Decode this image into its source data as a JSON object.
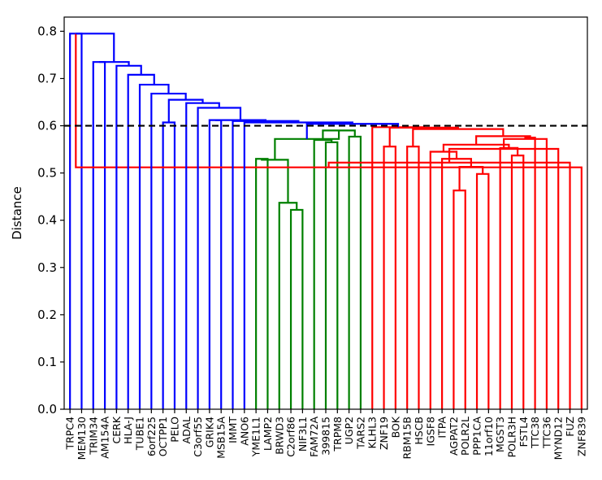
{
  "chart_data": {
    "type": "dendrogram",
    "title": "",
    "xlabel": "",
    "ylabel": "Distance",
    "ylim": [
      0,
      0.83
    ],
    "yticks": [
      0.0,
      0.1,
      0.2,
      0.3,
      0.4,
      0.5,
      0.6,
      0.7,
      0.8
    ],
    "ytick_labels": [
      "0.0",
      "0.1",
      "0.2",
      "0.3",
      "0.4",
      "0.5",
      "0.6",
      "0.7",
      "0.8"
    ],
    "threshold": 0.6,
    "leaves": [
      "TRPC4",
      "MEM130",
      "TRIM34",
      "AM154A",
      "CERK",
      "HLA-J",
      "TUBE1",
      "6orf225",
      "OCTPP1",
      "PELO",
      "ADAL",
      "C3orf55",
      "GRIK4",
      "MSB15A",
      "IMMT",
      "ANO6",
      "YME1L1",
      "LAMP2",
      "BRWD3",
      "C2orf86",
      "NIF3L1",
      "FAM72A",
      "399815",
      "TRPM8",
      "UGP2",
      "TARS2",
      "KLHL3",
      "ZNF19",
      "BOK",
      "RBM15B",
      "HSCB",
      "IGSF8",
      "ITPA",
      "AGPAT2",
      "POLR2L",
      "PPP1CA",
      "11orf10",
      "MGST3",
      "POLR3H",
      "FSTL4",
      "TTC38",
      "TTC36",
      "MYND12",
      "FUZ",
      "ZNF839"
    ],
    "merges": [
      {
        "l": 0,
        "r": 1,
        "h": 0.795,
        "c": "blue"
      },
      {
        "l": 2,
        "r": 3,
        "h": 0.735,
        "c": "blue"
      },
      {
        "l": 8,
        "r": 9,
        "h": 0.607,
        "c": "blue"
      },
      {
        "l": 12,
        "r": 13,
        "h": 0.612,
        "c": "blue"
      },
      {
        "l": 16,
        "r": 17,
        "h": 0.53,
        "c": "green"
      },
      {
        "l": 19,
        "r": 20,
        "h": 0.422,
        "c": "green"
      },
      {
        "l": 18,
        "r": 50,
        "h": 0.437,
        "c": "green"
      },
      {
        "l": 49,
        "r": 51,
        "h": 0.528,
        "c": "green"
      },
      {
        "l": 22,
        "r": 23,
        "h": 0.565,
        "c": "green"
      },
      {
        "l": 21,
        "r": 53,
        "h": 0.57,
        "c": "green"
      },
      {
        "l": 24,
        "r": 25,
        "h": 0.577,
        "c": "green"
      },
      {
        "l": 54,
        "r": 55,
        "h": 0.59,
        "c": "green"
      },
      {
        "l": 52,
        "r": 56,
        "h": 0.572,
        "c": "green"
      },
      {
        "l": 27,
        "r": 28,
        "h": 0.556,
        "c": "red"
      },
      {
        "l": 29,
        "r": 30,
        "h": 0.556,
        "c": "red"
      },
      {
        "l": 33,
        "r": 34,
        "h": 0.463,
        "c": "red"
      },
      {
        "l": 35,
        "r": 36,
        "h": 0.498,
        "c": "red"
      },
      {
        "l": 60,
        "r": 61,
        "h": 0.513,
        "c": "red"
      },
      {
        "l": 32,
        "r": 62,
        "h": 0.53,
        "c": "red"
      },
      {
        "l": 31,
        "r": 63,
        "h": 0.545,
        "c": "red"
      },
      {
        "l": 38,
        "r": 39,
        "h": 0.537,
        "c": "red"
      },
      {
        "l": 37,
        "r": 65,
        "h": 0.553,
        "c": "red"
      },
      {
        "l": 64,
        "r": 66,
        "h": 0.56,
        "c": "red"
      },
      {
        "l": 44,
        "r": 45,
        "h": 0.512,
        "c": "red"
      },
      {
        "l": 43,
        "r": 68,
        "h": 0.522,
        "c": "red"
      },
      {
        "l": 42,
        "r": 69,
        "h": 0.551,
        "c": "red"
      },
      {
        "l": 41,
        "r": 70,
        "h": 0.572,
        "c": "red"
      },
      {
        "l": 40,
        "r": 71,
        "h": 0.575,
        "c": "red"
      },
      {
        "l": 67,
        "r": 72,
        "h": 0.578,
        "c": "red"
      },
      {
        "l": 59,
        "r": 73,
        "h": 0.593,
        "c": "red"
      },
      {
        "l": 58,
        "r": 74,
        "h": 0.596,
        "c": "red"
      },
      {
        "l": 26,
        "r": 75,
        "h": 0.597,
        "c": "red"
      },
      {
        "l": 57,
        "r": 76,
        "h": 0.604,
        "c": "blue"
      },
      {
        "l": 15,
        "r": 77,
        "h": 0.607,
        "c": "blue"
      },
      {
        "l": 14,
        "r": 78,
        "h": 0.61,
        "c": "blue"
      },
      {
        "l": 48,
        "r": 79,
        "h": 0.612,
        "c": "blue"
      },
      {
        "l": 11,
        "r": 80,
        "h": 0.638,
        "c": "blue"
      },
      {
        "l": 10,
        "r": 81,
        "h": 0.648,
        "c": "blue"
      },
      {
        "l": 47,
        "r": 82,
        "h": 0.655,
        "c": "blue"
      },
      {
        "l": 7,
        "r": 83,
        "h": 0.668,
        "c": "blue"
      },
      {
        "l": 6,
        "r": 84,
        "h": 0.687,
        "c": "blue"
      },
      {
        "l": 5,
        "r": 85,
        "h": 0.708,
        "c": "blue"
      },
      {
        "l": 4,
        "r": 86,
        "h": 0.727,
        "c": "blue"
      },
      {
        "l": 46,
        "r": 87,
        "h": 0.735,
        "c": "blue"
      },
      {
        "l": 45,
        "r": 88,
        "h": 0.795,
        "c": "blue"
      }
    ],
    "colors": {
      "blue": "#0000ff",
      "green": "#008000",
      "red": "#ff0000",
      "threshold": "#000000"
    },
    "grid": false,
    "legend": "none"
  }
}
